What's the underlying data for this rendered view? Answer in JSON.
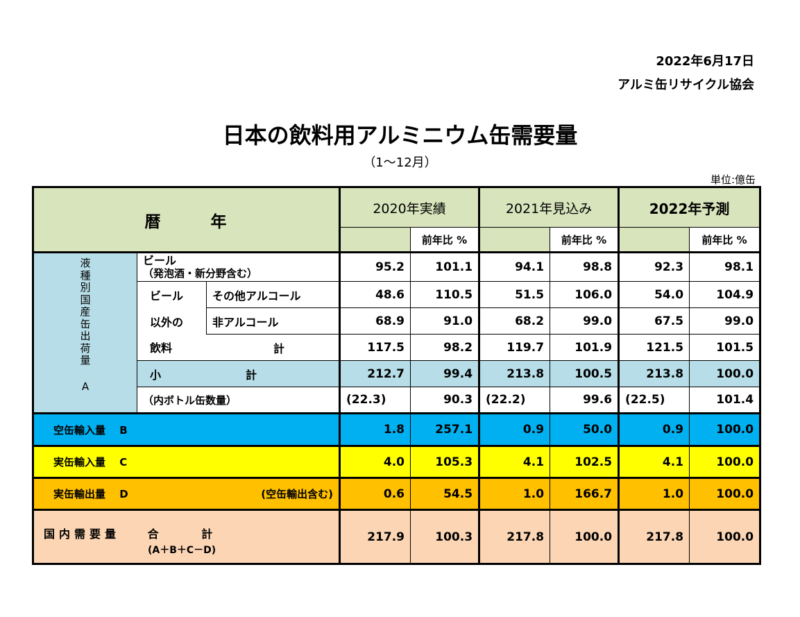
{
  "header": {
    "date": "2022年6月17日",
    "organization": "アルミ缶リサイクル協会",
    "title": "日本の飲料用アルミニウム缶需要量",
    "subtitle": "（1～12月）",
    "unit": "単位:億缶"
  },
  "table": {
    "year_label_left": "暦",
    "year_label_right": "年",
    "years": [
      "2020年実績",
      "2021年見込み",
      "2022年予測"
    ],
    "pct_label": "前年比 %",
    "side_label_chars": [
      "液",
      "種",
      "別",
      "国",
      "産",
      "缶",
      "出",
      "荷",
      "量"
    ],
    "side_label_letter": "A",
    "beer_label": "ビール",
    "beer_sub_label": "（発泡酒・新分野含む）",
    "nonbeer_label_1": "ビール",
    "nonbeer_label_2": "以外の",
    "nonbeer_label_3": "飲料",
    "other_alcohol_label": "その他アルコール",
    "non_alcohol_label": "非アルコール",
    "total_label": "計",
    "subtotal_label_1": "小",
    "subtotal_label_2": "計",
    "bottle_label": "（内ボトル缶数量）",
    "import_empty_label": "空缶輸入量　 B",
    "import_full_label": "実缶輸入量　 C",
    "export_label": "実缶輸出量　 D",
    "export_note": "(空缶輸出含む)",
    "domestic_label_1": "国内需要量",
    "domestic_label_2": "合",
    "domestic_label_3": "計",
    "domestic_formula": "(A＋B＋C－D)",
    "rows": {
      "beer": [
        "95.2",
        "101.1",
        "94.1",
        "98.8",
        "92.3",
        "98.1"
      ],
      "other_alcohol": [
        "48.6",
        "110.5",
        "51.5",
        "106.0",
        "54.0",
        "104.9"
      ],
      "non_alcohol": [
        "68.9",
        "91.0",
        "68.2",
        "99.0",
        "67.5",
        "99.0"
      ],
      "nonbeer_total": [
        "117.5",
        "98.2",
        "119.7",
        "101.9",
        "121.5",
        "101.5"
      ],
      "subtotal": [
        "212.7",
        "99.4",
        "213.8",
        "100.5",
        "213.8",
        "100.0"
      ],
      "bottle": [
        "(22.3)",
        "90.3",
        "(22.2)",
        "99.6",
        "(22.5)",
        "101.4"
      ],
      "import_empty": [
        "1.8",
        "257.1",
        "0.9",
        "50.0",
        "0.9",
        "100.0"
      ],
      "import_full": [
        "4.0",
        "105.3",
        "4.1",
        "102.5",
        "4.1",
        "100.0"
      ],
      "export": [
        "0.6",
        "54.5",
        "1.0",
        "166.7",
        "1.0",
        "100.0"
      ],
      "domestic": [
        "217.9",
        "100.3",
        "217.8",
        "100.0",
        "217.8",
        "100.0"
      ]
    }
  },
  "colors": {
    "header_bg": "#d8e4bc",
    "side_bg": "#b7dee8",
    "import_empty_bg": "#00b0f0",
    "import_full_bg": "#ffff00",
    "export_bg": "#ffc000",
    "domestic_bg": "#fcd5b4"
  }
}
